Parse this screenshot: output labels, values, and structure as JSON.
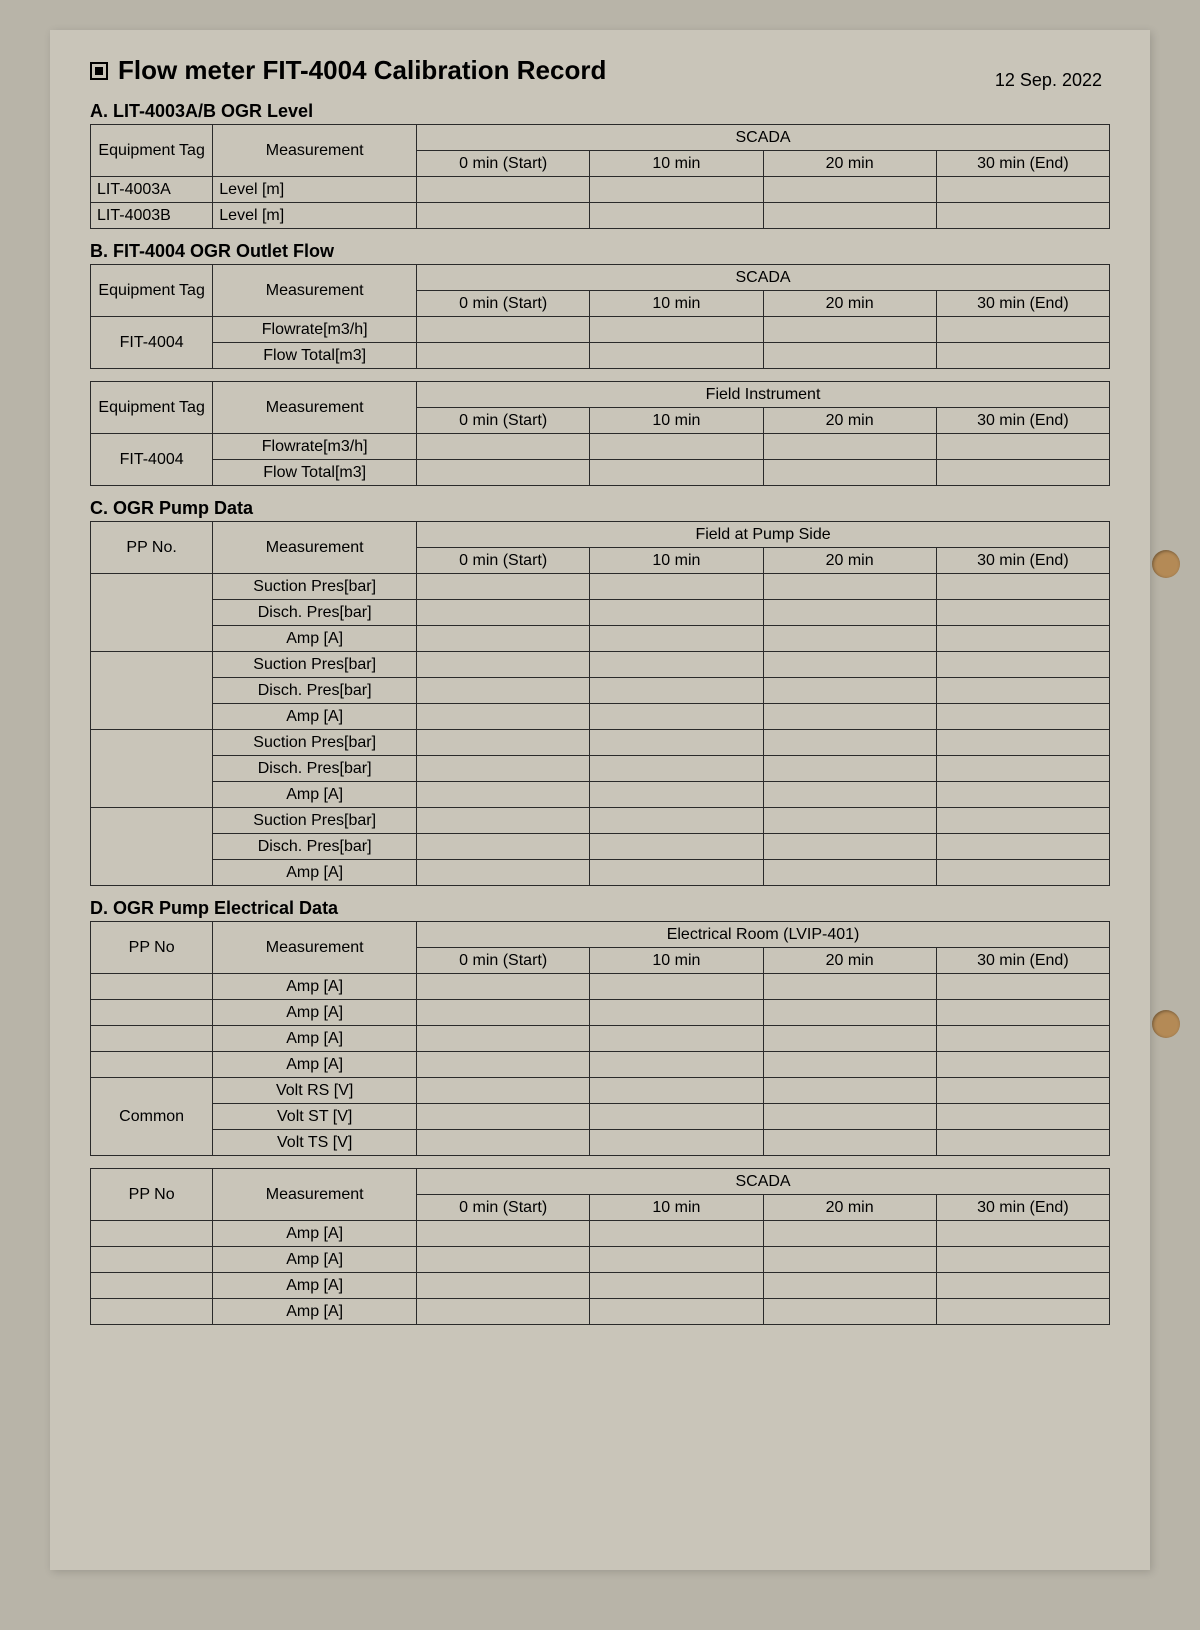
{
  "title": "Flow meter FIT-4004 Calibration Record",
  "date": "12 Sep. 2022",
  "timeCols": [
    "0 min (Start)",
    "10 min",
    "20 min",
    "30 min (End)"
  ],
  "secA": {
    "heading": "A. LIT-4003A/B OGR Level",
    "headerGroup": "SCADA",
    "col1": "Equipment Tag",
    "col2": "Measurement",
    "rows": [
      {
        "tag": "LIT-4003A",
        "meas": "Level [m]"
      },
      {
        "tag": "LIT-4003B",
        "meas": "Level [m]"
      }
    ]
  },
  "secB": {
    "heading": "B. FIT-4004 OGR Outlet Flow",
    "col1": "Equipment Tag",
    "col2": "Measurement",
    "t1": {
      "headerGroup": "SCADA",
      "tag": "FIT-4004",
      "rows": [
        "Flowrate[m3/h]",
        "Flow Total[m3]"
      ]
    },
    "t2": {
      "headerGroup": "Field Instrument",
      "tag": "FIT-4004",
      "rows": [
        "Flowrate[m3/h]",
        "Flow Total[m3]"
      ]
    }
  },
  "secC": {
    "heading": "C. OGR Pump Data",
    "headerGroup": "Field at Pump Side",
    "col1": "PP No.",
    "col2": "Measurement",
    "groups": [
      [
        "Suction Pres[bar]",
        "Disch. Pres[bar]",
        "Amp [A]"
      ],
      [
        "Suction Pres[bar]",
        "Disch. Pres[bar]",
        "Amp [A]"
      ],
      [
        "Suction Pres[bar]",
        "Disch. Pres[bar]",
        "Amp [A]"
      ],
      [
        "Suction Pres[bar]",
        "Disch. Pres[bar]",
        "Amp [A]"
      ]
    ]
  },
  "secD": {
    "heading": "D. OGR Pump Electrical Data",
    "col1": "PP No",
    "col2": "Measurement",
    "t1": {
      "headerGroup": "Electrical Room (LVIP-401)",
      "ampRows": 4,
      "ampLabel": "Amp [A]",
      "commonLabel": "Common",
      "voltRows": [
        "Volt RS [V]",
        "Volt ST [V]",
        "Volt TS [V]"
      ]
    },
    "t2": {
      "headerGroup": "SCADA",
      "ampRows": 4,
      "ampLabel": "Amp [A]"
    }
  }
}
